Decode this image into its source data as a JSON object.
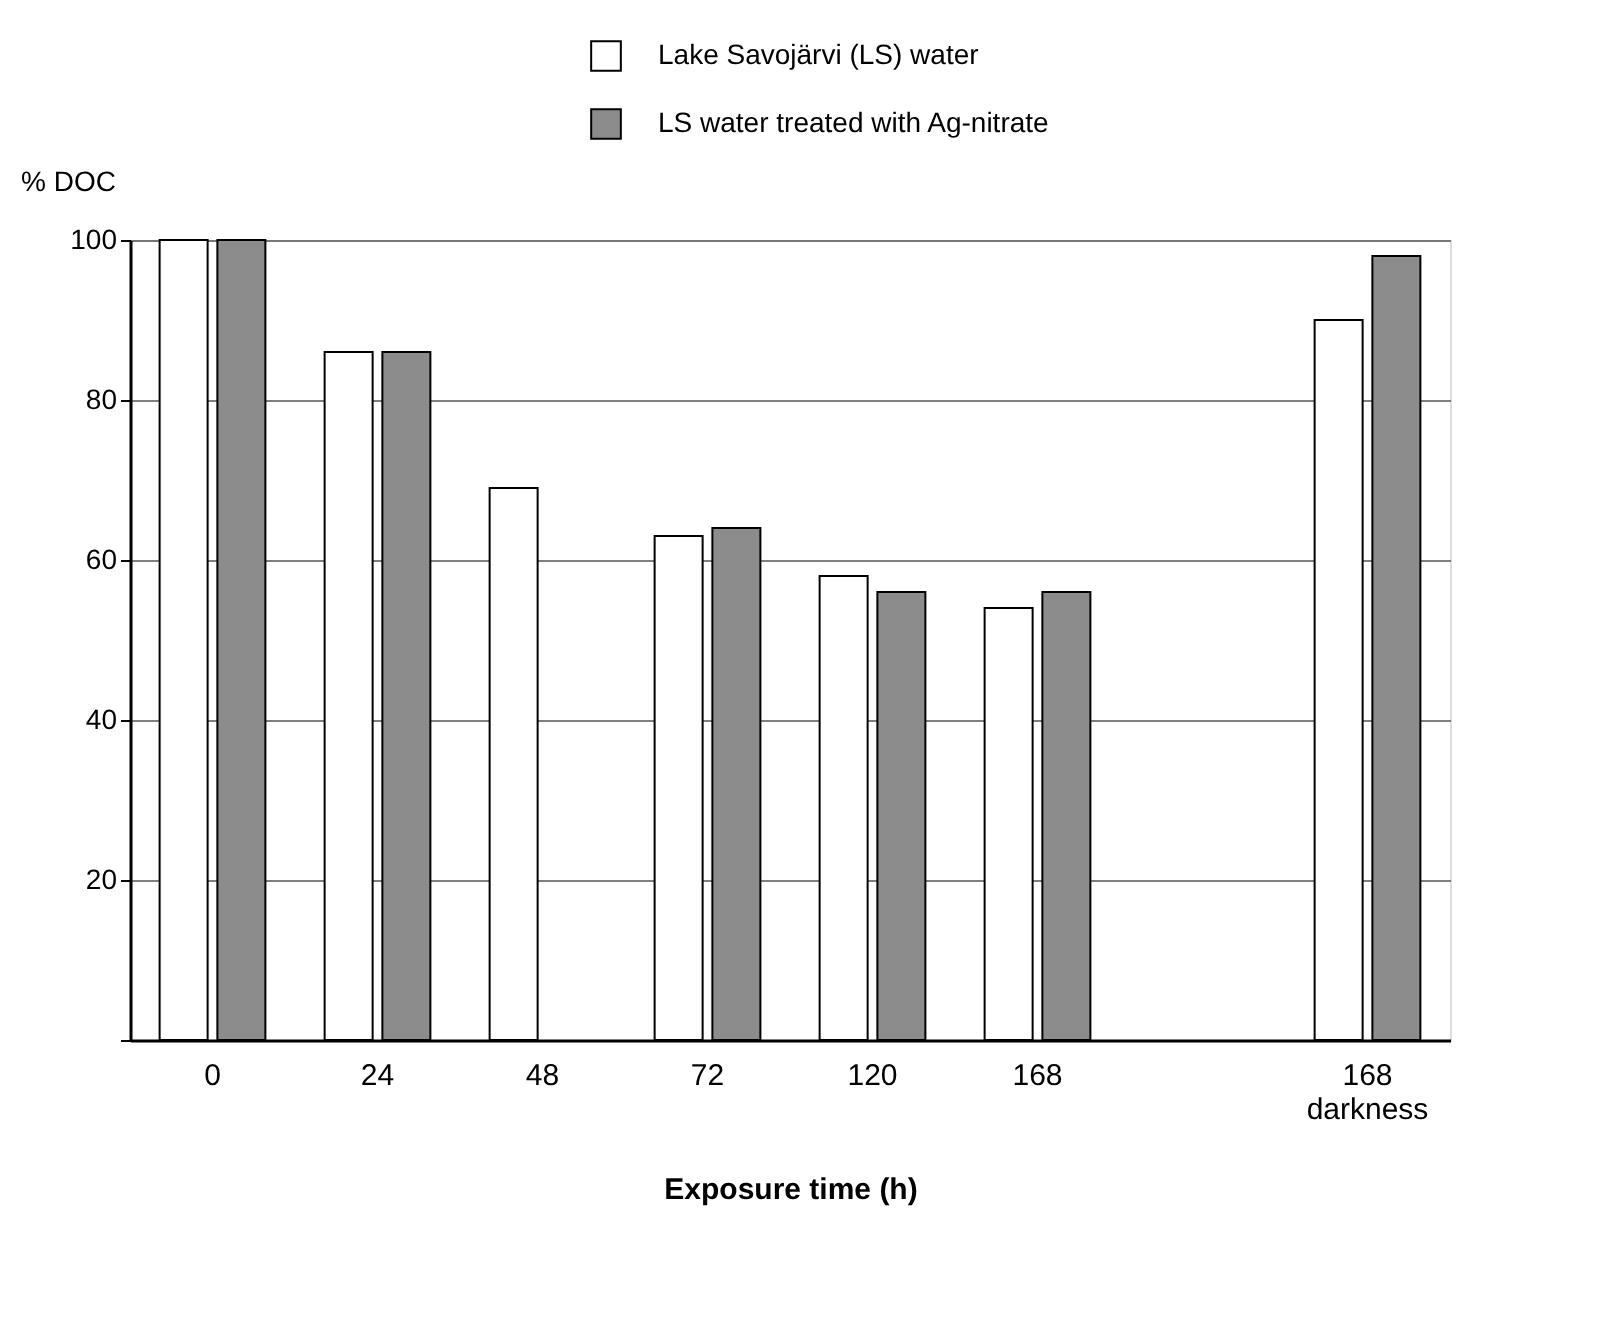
{
  "chart_data": {
    "type": "bar",
    "categories": [
      "0",
      "24",
      "48",
      "72",
      "120",
      "168",
      null,
      "168 darkness"
    ],
    "series": [
      {
        "name": "Lake Savojärvi (LS) water",
        "color": "#ffffff",
        "values": [
          100,
          86,
          69,
          63,
          58,
          54,
          null,
          90
        ]
      },
      {
        "name": "LS water treated with Ag-nitrate",
        "color": "#8c8c8c",
        "values": [
          100,
          86,
          null,
          64,
          56,
          56,
          null,
          98
        ]
      }
    ],
    "xlabel": "Exposure time (h)",
    "ylabel": "% DOC",
    "ylim": [
      0,
      100
    ],
    "yticks": [
      {
        "value": 0,
        "label": null
      },
      20,
      40,
      60,
      80,
      100
    ],
    "grid": "y",
    "legend": "top right"
  }
}
